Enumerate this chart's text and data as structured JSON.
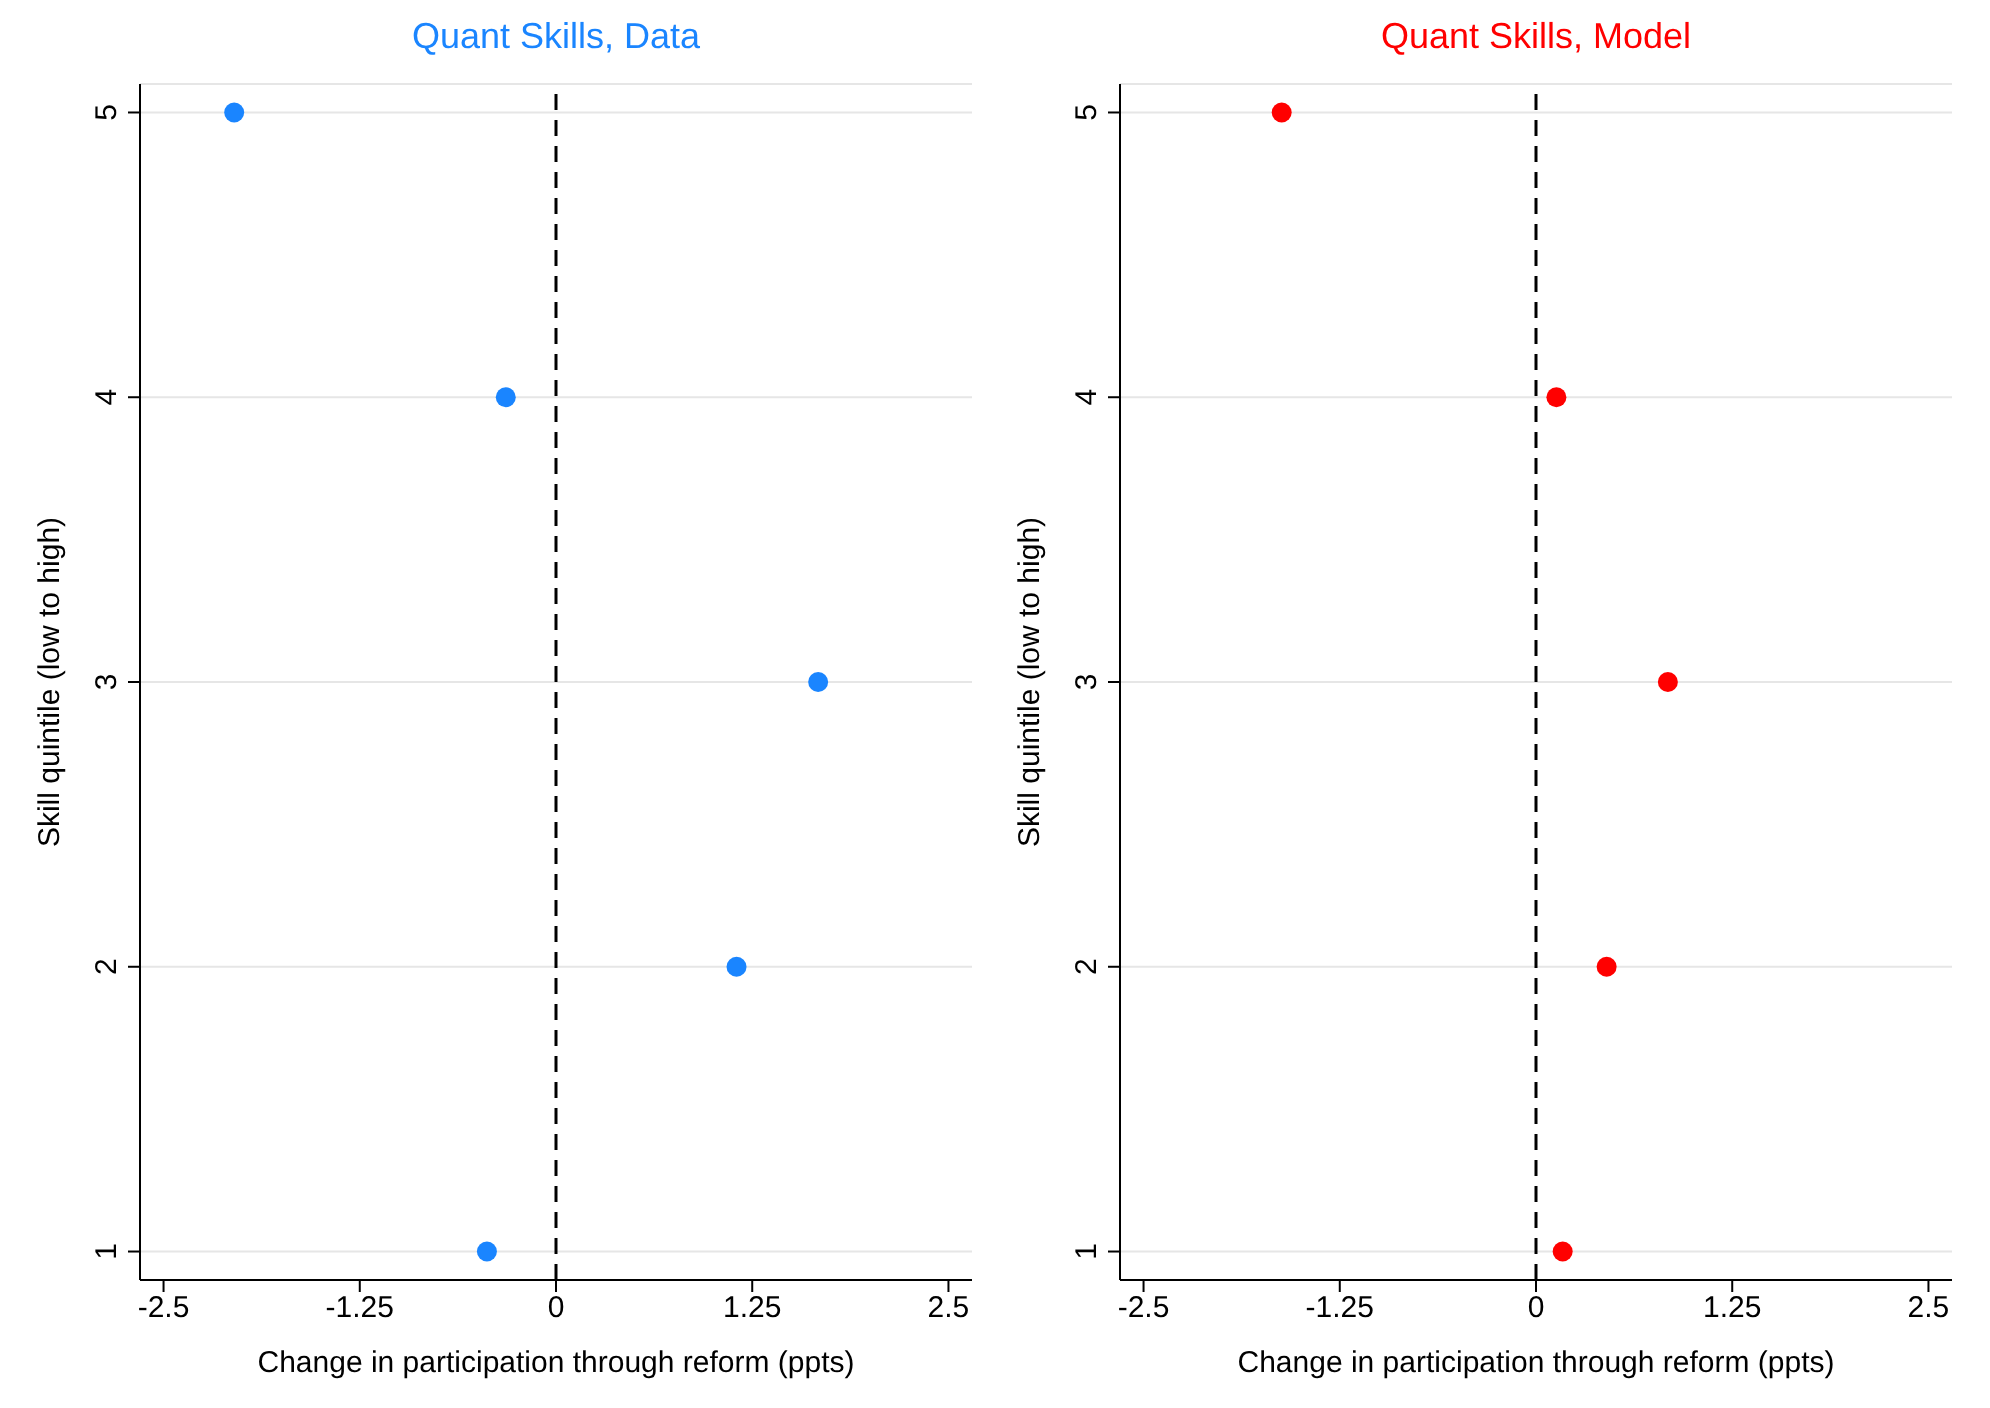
{
  "chart_data": [
    {
      "type": "scatter",
      "title": "Quant Skills, Data",
      "xlabel": "Change in participation through reform (ppts)",
      "ylabel": "Skill quintile (low to high)",
      "xlim": [
        -2.65,
        2.65
      ],
      "xticks": [
        -2.5,
        -1.25,
        0,
        1.25,
        2.5
      ],
      "ylim": [
        0.9,
        5.1
      ],
      "yticks": [
        1,
        2,
        3,
        4,
        5
      ],
      "grid": "y",
      "marker": "circle",
      "ref_lines": [
        {
          "axis": "x",
          "value": 0,
          "color": "#000000",
          "line_style": "dashed"
        }
      ],
      "series": [
        {
          "color": "#1a85ff",
          "x": [
            -0.44,
            1.15,
            1.67,
            -0.32,
            -2.05
          ],
          "values": [
            1,
            2,
            3,
            4,
            5
          ]
        }
      ]
    },
    {
      "type": "scatter",
      "title": "Quant Skills, Model",
      "xlabel": "Change in participation through reform (ppts)",
      "ylabel": "Skill quintile (low to high)",
      "xlim": [
        -2.65,
        2.65
      ],
      "xticks": [
        -2.5,
        -1.25,
        0,
        1.25,
        2.5
      ],
      "ylim": [
        0.9,
        5.1
      ],
      "yticks": [
        1,
        2,
        3,
        4,
        5
      ],
      "grid": "y",
      "marker": "circle",
      "ref_lines": [
        {
          "axis": "x",
          "value": 0,
          "color": "#000000",
          "line_style": "dashed"
        }
      ],
      "series": [
        {
          "color": "#ff0000",
          "x": [
            0.17,
            0.45,
            0.84,
            0.13,
            -1.62
          ],
          "values": [
            1,
            2,
            3,
            4,
            5
          ]
        }
      ]
    }
  ]
}
